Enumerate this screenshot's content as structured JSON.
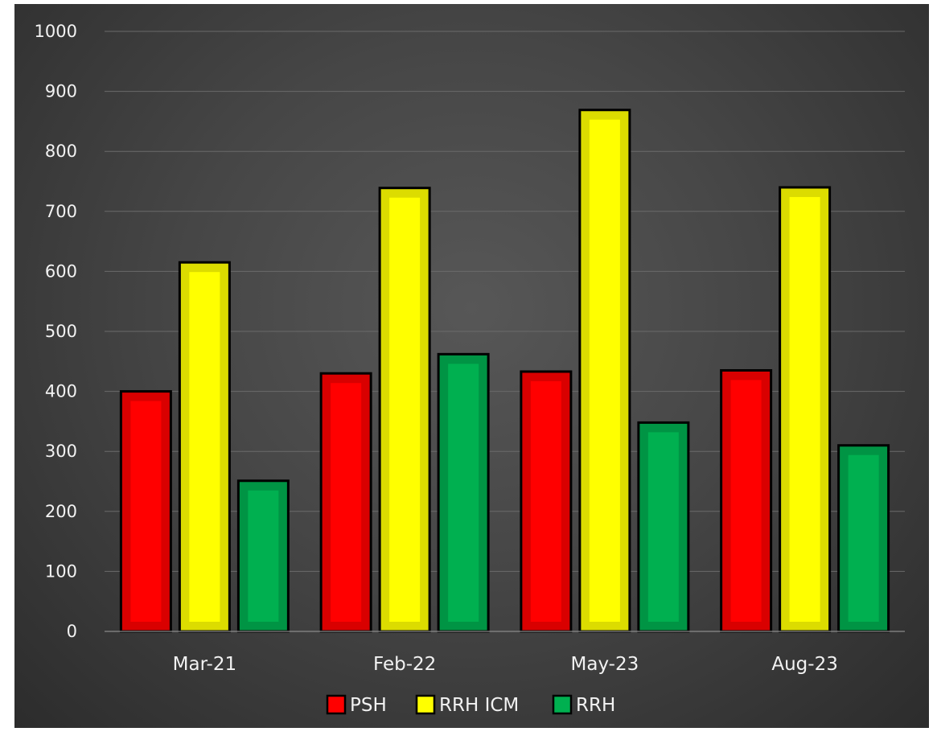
{
  "chart_data": {
    "type": "bar",
    "title": "",
    "xlabel": "",
    "ylabel": "",
    "categories": [
      "Mar-21",
      "Feb-22",
      "May-23",
      "Aug-23"
    ],
    "series": [
      {
        "name": "PSH",
        "values": [
          400,
          430,
          433,
          435
        ],
        "color": "#ff0000",
        "border": "#d90000"
      },
      {
        "name": "RRH ICM",
        "values": [
          615,
          739,
          869,
          740
        ],
        "color": "#ffff00",
        "border": "#dcdc00"
      },
      {
        "name": "RRH",
        "values": [
          251,
          462,
          348,
          310
        ],
        "color": "#00b050",
        "border": "#009444"
      }
    ],
    "ylim": [
      0,
      1000
    ],
    "yticks": [
      0,
      100,
      200,
      300,
      400,
      500,
      600,
      700,
      800,
      900,
      1000
    ],
    "grid": true,
    "legend": "bottom-center",
    "background": "#474747"
  }
}
